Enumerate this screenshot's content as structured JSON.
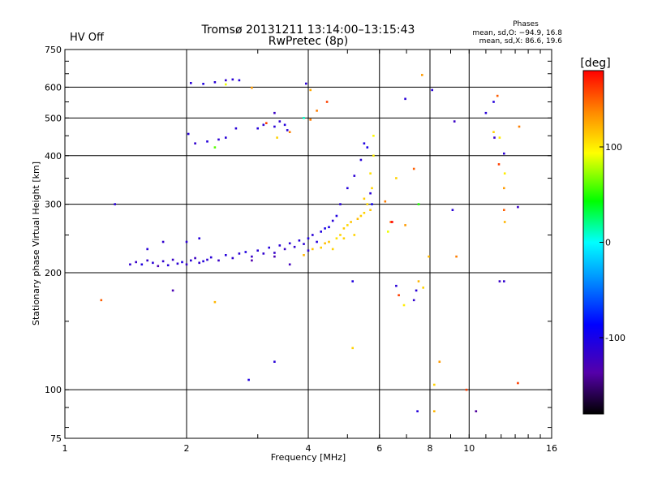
{
  "header": {
    "title": "Tromsø 20131211 13:14:00–13:15:43",
    "subtitle": "RwPretec (8p)",
    "hv_status": "HV Off",
    "hv_color": "#e00000",
    "stats_title": "Phases",
    "stats_line1": "mean, sd,O: −94.9, 16.8",
    "stats_line2": "mean, sd,X:  86.6, 19.6"
  },
  "chart_data": {
    "type": "scatter",
    "xlabel": "Frequency [MHz]",
    "ylabel": "Stationary phase Virtual Height [km]",
    "xscale": "log",
    "yscale": "log",
    "xlim": [
      1,
      16
    ],
    "ylim": [
      75,
      750
    ],
    "xticks": [
      1,
      2,
      4,
      6,
      8,
      10,
      16
    ],
    "yticks": [
      75,
      100,
      200,
      300,
      400,
      500,
      600,
      750
    ],
    "grid": true,
    "colorbar": {
      "label": "[deg]",
      "min": -180,
      "max": 180,
      "ticks": [
        100,
        0,
        -100
      ]
    },
    "points": [
      [
        1.23,
        170,
        150
      ],
      [
        1.33,
        300,
        -110
      ],
      [
        1.45,
        210,
        -115
      ],
      [
        1.5,
        213,
        -120
      ],
      [
        1.55,
        210,
        -105
      ],
      [
        1.6,
        215,
        -118
      ],
      [
        1.65,
        212,
        -110
      ],
      [
        1.7,
        208,
        -130
      ],
      [
        1.75,
        214,
        -115
      ],
      [
        1.8,
        209,
        -108
      ],
      [
        1.85,
        216,
        -120
      ],
      [
        1.9,
        211,
        -112
      ],
      [
        1.95,
        213,
        -105
      ],
      [
        2.0,
        210,
        -118
      ],
      [
        2.05,
        215,
        -110
      ],
      [
        2.1,
        218,
        -122
      ],
      [
        2.15,
        212,
        -115
      ],
      [
        2.2,
        214,
        -108
      ],
      [
        2.25,
        216,
        -112
      ],
      [
        2.3,
        219,
        -110
      ],
      [
        2.4,
        215,
        -120
      ],
      [
        2.5,
        222,
        -108
      ],
      [
        2.6,
        218,
        -115
      ],
      [
        2.7,
        224,
        -112
      ],
      [
        2.8,
        226,
        -105
      ],
      [
        2.9,
        220,
        -120
      ],
      [
        3.0,
        228,
        -110
      ],
      [
        3.1,
        224,
        -115
      ],
      [
        3.2,
        232,
        -108
      ],
      [
        3.3,
        225,
        -118
      ],
      [
        3.4,
        235,
        -112
      ],
      [
        3.5,
        230,
        -120
      ],
      [
        3.6,
        238,
        -110
      ],
      [
        3.7,
        233,
        -115
      ],
      [
        3.8,
        242,
        -108
      ],
      [
        3.9,
        237,
        -112
      ],
      [
        4.0,
        245,
        -105
      ],
      [
        4.1,
        250,
        -110
      ],
      [
        4.2,
        240,
        -108
      ],
      [
        4.3,
        255,
        -105
      ],
      [
        4.4,
        260,
        -100
      ],
      [
        4.5,
        262,
        -102
      ],
      [
        4.6,
        272,
        -110
      ],
      [
        4.7,
        280,
        -105
      ],
      [
        4.8,
        300,
        -110
      ],
      [
        5.0,
        330,
        -108
      ],
      [
        5.2,
        355,
        -112
      ],
      [
        5.4,
        390,
        -110
      ],
      [
        5.5,
        430,
        -105
      ],
      [
        5.6,
        420,
        -100
      ],
      [
        5.7,
        320,
        -110
      ],
      [
        5.75,
        300,
        -95
      ],
      [
        1.6,
        230,
        -110
      ],
      [
        1.75,
        240,
        -115
      ],
      [
        2.0,
        240,
        -112
      ],
      [
        2.15,
        245,
        -108
      ],
      [
        3.6,
        210,
        -125
      ],
      [
        3.3,
        220,
        -130
      ],
      [
        2.9,
        215,
        -135
      ],
      [
        4.0,
        228,
        -115
      ],
      [
        4.5,
        240,
        115
      ],
      [
        4.6,
        230,
        110
      ],
      [
        4.7,
        245,
        105
      ],
      [
        4.8,
        250,
        110
      ],
      [
        4.9,
        260,
        112
      ],
      [
        5.0,
        265,
        108
      ],
      [
        5.1,
        270,
        115
      ],
      [
        5.2,
        250,
        110
      ],
      [
        5.3,
        275,
        118
      ],
      [
        5.4,
        280,
        112
      ],
      [
        5.5,
        285,
        110
      ],
      [
        5.6,
        300,
        108
      ],
      [
        5.7,
        290,
        115
      ],
      [
        5.75,
        330,
        110
      ],
      [
        5.8,
        400,
        100
      ],
      [
        5.8,
        450,
        95
      ],
      [
        5.7,
        360,
        105
      ],
      [
        5.5,
        310,
        112
      ],
      [
        4.9,
        245,
        110
      ],
      [
        4.3,
        232,
        112
      ],
      [
        4.4,
        238,
        118
      ],
      [
        4.1,
        230,
        115
      ],
      [
        3.9,
        222,
        120
      ],
      [
        2.05,
        615,
        -110
      ],
      [
        2.2,
        612,
        -105
      ],
      [
        2.35,
        618,
        -110
      ],
      [
        2.5,
        625,
        -115
      ],
      [
        2.6,
        628,
        -110
      ],
      [
        2.5,
        610,
        90
      ],
      [
        2.7,
        625,
        -108
      ],
      [
        2.9,
        598,
        130
      ],
      [
        3.95,
        613,
        -112
      ],
      [
        4.05,
        590,
        125
      ],
      [
        2.02,
        455,
        -110
      ],
      [
        2.1,
        430,
        -115
      ],
      [
        2.25,
        435,
        -108
      ],
      [
        2.4,
        440,
        -112
      ],
      [
        2.5,
        445,
        -110
      ],
      [
        2.35,
        420,
        60
      ],
      [
        2.65,
        470,
        -110
      ],
      [
        3.0,
        470,
        -108
      ],
      [
        3.1,
        480,
        -112
      ],
      [
        3.3,
        475,
        -110
      ],
      [
        3.4,
        490,
        -115
      ],
      [
        3.5,
        480,
        -108
      ],
      [
        3.55,
        465,
        -110
      ],
      [
        3.3,
        515,
        -120
      ],
      [
        3.15,
        485,
        160
      ],
      [
        3.35,
        445,
        110
      ],
      [
        3.6,
        460,
        140
      ],
      [
        3.9,
        500,
        10
      ],
      [
        4.2,
        522,
        140
      ],
      [
        4.45,
        550,
        160
      ],
      [
        4.05,
        495,
        140
      ],
      [
        6.95,
        560,
        -110
      ],
      [
        7.65,
        645,
        130
      ],
      [
        8.1,
        590,
        -110
      ],
      [
        9.2,
        490,
        -120
      ],
      [
        11.0,
        515,
        -110
      ],
      [
        11.5,
        550,
        -108
      ],
      [
        11.75,
        570,
        150
      ],
      [
        11.55,
        445,
        -120
      ],
      [
        12.2,
        405,
        -112
      ],
      [
        11.9,
        445,
        100
      ],
      [
        11.5,
        460,
        110
      ],
      [
        13.3,
        475,
        140
      ],
      [
        12.25,
        360,
        100
      ],
      [
        12.2,
        330,
        130
      ],
      [
        12.2,
        290,
        150
      ],
      [
        12.25,
        270,
        120
      ],
      [
        13.2,
        295,
        -120
      ],
      [
        11.85,
        380,
        160
      ],
      [
        6.2,
        305,
        140
      ],
      [
        6.6,
        350,
        110
      ],
      [
        7.3,
        370,
        150
      ],
      [
        7.5,
        300,
        50
      ],
      [
        6.95,
        265,
        130
      ],
      [
        6.3,
        255,
        90
      ],
      [
        6.4,
        270,
        150
      ],
      [
        6.45,
        270,
        180
      ],
      [
        7.95,
        220,
        120
      ],
      [
        9.3,
        220,
        140
      ],
      [
        9.1,
        290,
        -110
      ],
      [
        11.9,
        190,
        -120
      ],
      [
        12.2,
        190,
        -115
      ],
      [
        7.5,
        190,
        120
      ],
      [
        6.6,
        185,
        -110
      ],
      [
        6.7,
        175,
        160
      ],
      [
        6.9,
        165,
        100
      ],
      [
        5.15,
        190,
        -105
      ],
      [
        7.4,
        180,
        -110
      ],
      [
        5.15,
        128,
        110
      ],
      [
        2.35,
        168,
        120
      ],
      [
        1.85,
        180,
        -130
      ],
      [
        3.3,
        118,
        -110
      ],
      [
        2.85,
        106,
        -105
      ],
      [
        8.45,
        118,
        130
      ],
      [
        8.2,
        103,
        110
      ],
      [
        9.85,
        100,
        160
      ],
      [
        10.4,
        88,
        -140
      ],
      [
        7.45,
        88,
        -108
      ],
      [
        8.2,
        88,
        120
      ],
      [
        13.2,
        104,
        160
      ],
      [
        7.7,
        183,
        110
      ],
      [
        7.3,
        170,
        -115
      ]
    ]
  }
}
